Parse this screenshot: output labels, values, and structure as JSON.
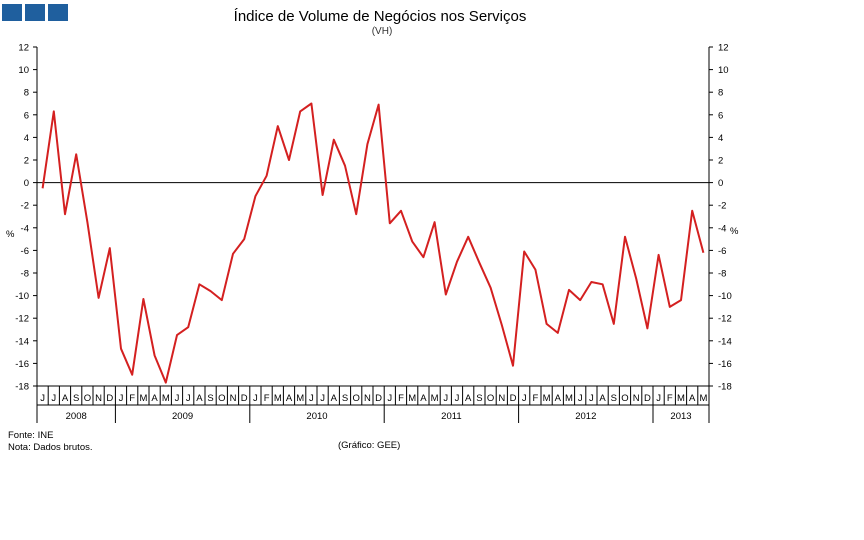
{
  "header": {
    "logo_icon": "ine-logo-squares",
    "title": "Índice de Volume de Negócios nos Serviços",
    "subtitle": "(VH)"
  },
  "footer": {
    "source": "Fonte: INE",
    "note": "Nota: Dados brutos.",
    "credit": "(Gráfico: GEE)"
  },
  "chart_data": {
    "type": "line",
    "title": "Índice de Volume de Negócios nos Serviços",
    "subtitle": "(VH)",
    "ylabel": "%",
    "ylabel_right": "%",
    "ylim": [
      -18,
      12
    ],
    "yticks": [
      12,
      10,
      8,
      6,
      4,
      2,
      0,
      -2,
      -4,
      -6,
      -8,
      -10,
      -12,
      -14,
      -16,
      -18
    ],
    "line_color": "#d42020",
    "months": [
      "J",
      "J",
      "A",
      "S",
      "O",
      "N",
      "D",
      "J",
      "F",
      "M",
      "A",
      "M",
      "J",
      "J",
      "A",
      "S",
      "O",
      "N",
      "D",
      "J",
      "F",
      "M",
      "A",
      "M",
      "J",
      "J",
      "A",
      "S",
      "O",
      "N",
      "D",
      "J",
      "F",
      "M",
      "A",
      "M",
      "J",
      "J",
      "A",
      "S",
      "O",
      "N",
      "D",
      "J",
      "F",
      "M",
      "A",
      "M",
      "J",
      "J",
      "A",
      "S",
      "O",
      "N",
      "D",
      "J",
      "F",
      "M",
      "A",
      "M"
    ],
    "years": [
      {
        "label": "2008",
        "start": 0,
        "end": 7
      },
      {
        "label": "2009",
        "start": 7,
        "end": 19
      },
      {
        "label": "2010",
        "start": 19,
        "end": 31
      },
      {
        "label": "2011",
        "start": 31,
        "end": 43
      },
      {
        "label": "2012",
        "start": 43,
        "end": 55
      },
      {
        "label": "2013",
        "start": 55,
        "end": 60
      }
    ],
    "series": [
      {
        "name": "Índice de Volume de Negócios nos Serviços (VH)",
        "values": [
          -0.5,
          6.3,
          -2.8,
          2.5,
          -3.5,
          -10.2,
          -5.8,
          -14.7,
          -17.0,
          -10.3,
          -15.3,
          -17.7,
          -13.5,
          -12.8,
          -9.0,
          -9.6,
          -10.4,
          -6.3,
          -5.0,
          -1.2,
          0.6,
          5.0,
          2.0,
          6.3,
          7.0,
          -1.1,
          3.8,
          1.5,
          -2.8,
          3.4,
          6.9,
          -3.6,
          -2.5,
          -5.2,
          -6.6,
          -3.5,
          -9.9,
          -7.0,
          -4.8,
          -7.1,
          -9.3,
          -12.6,
          -16.2,
          -6.1,
          -7.7,
          -12.5,
          -13.3,
          -9.5,
          -10.4,
          -8.8,
          -9.0,
          -12.5,
          -4.8,
          -8.5,
          -12.9,
          -6.4,
          -11.0,
          -10.4,
          -2.5,
          -6.2
        ]
      }
    ]
  }
}
